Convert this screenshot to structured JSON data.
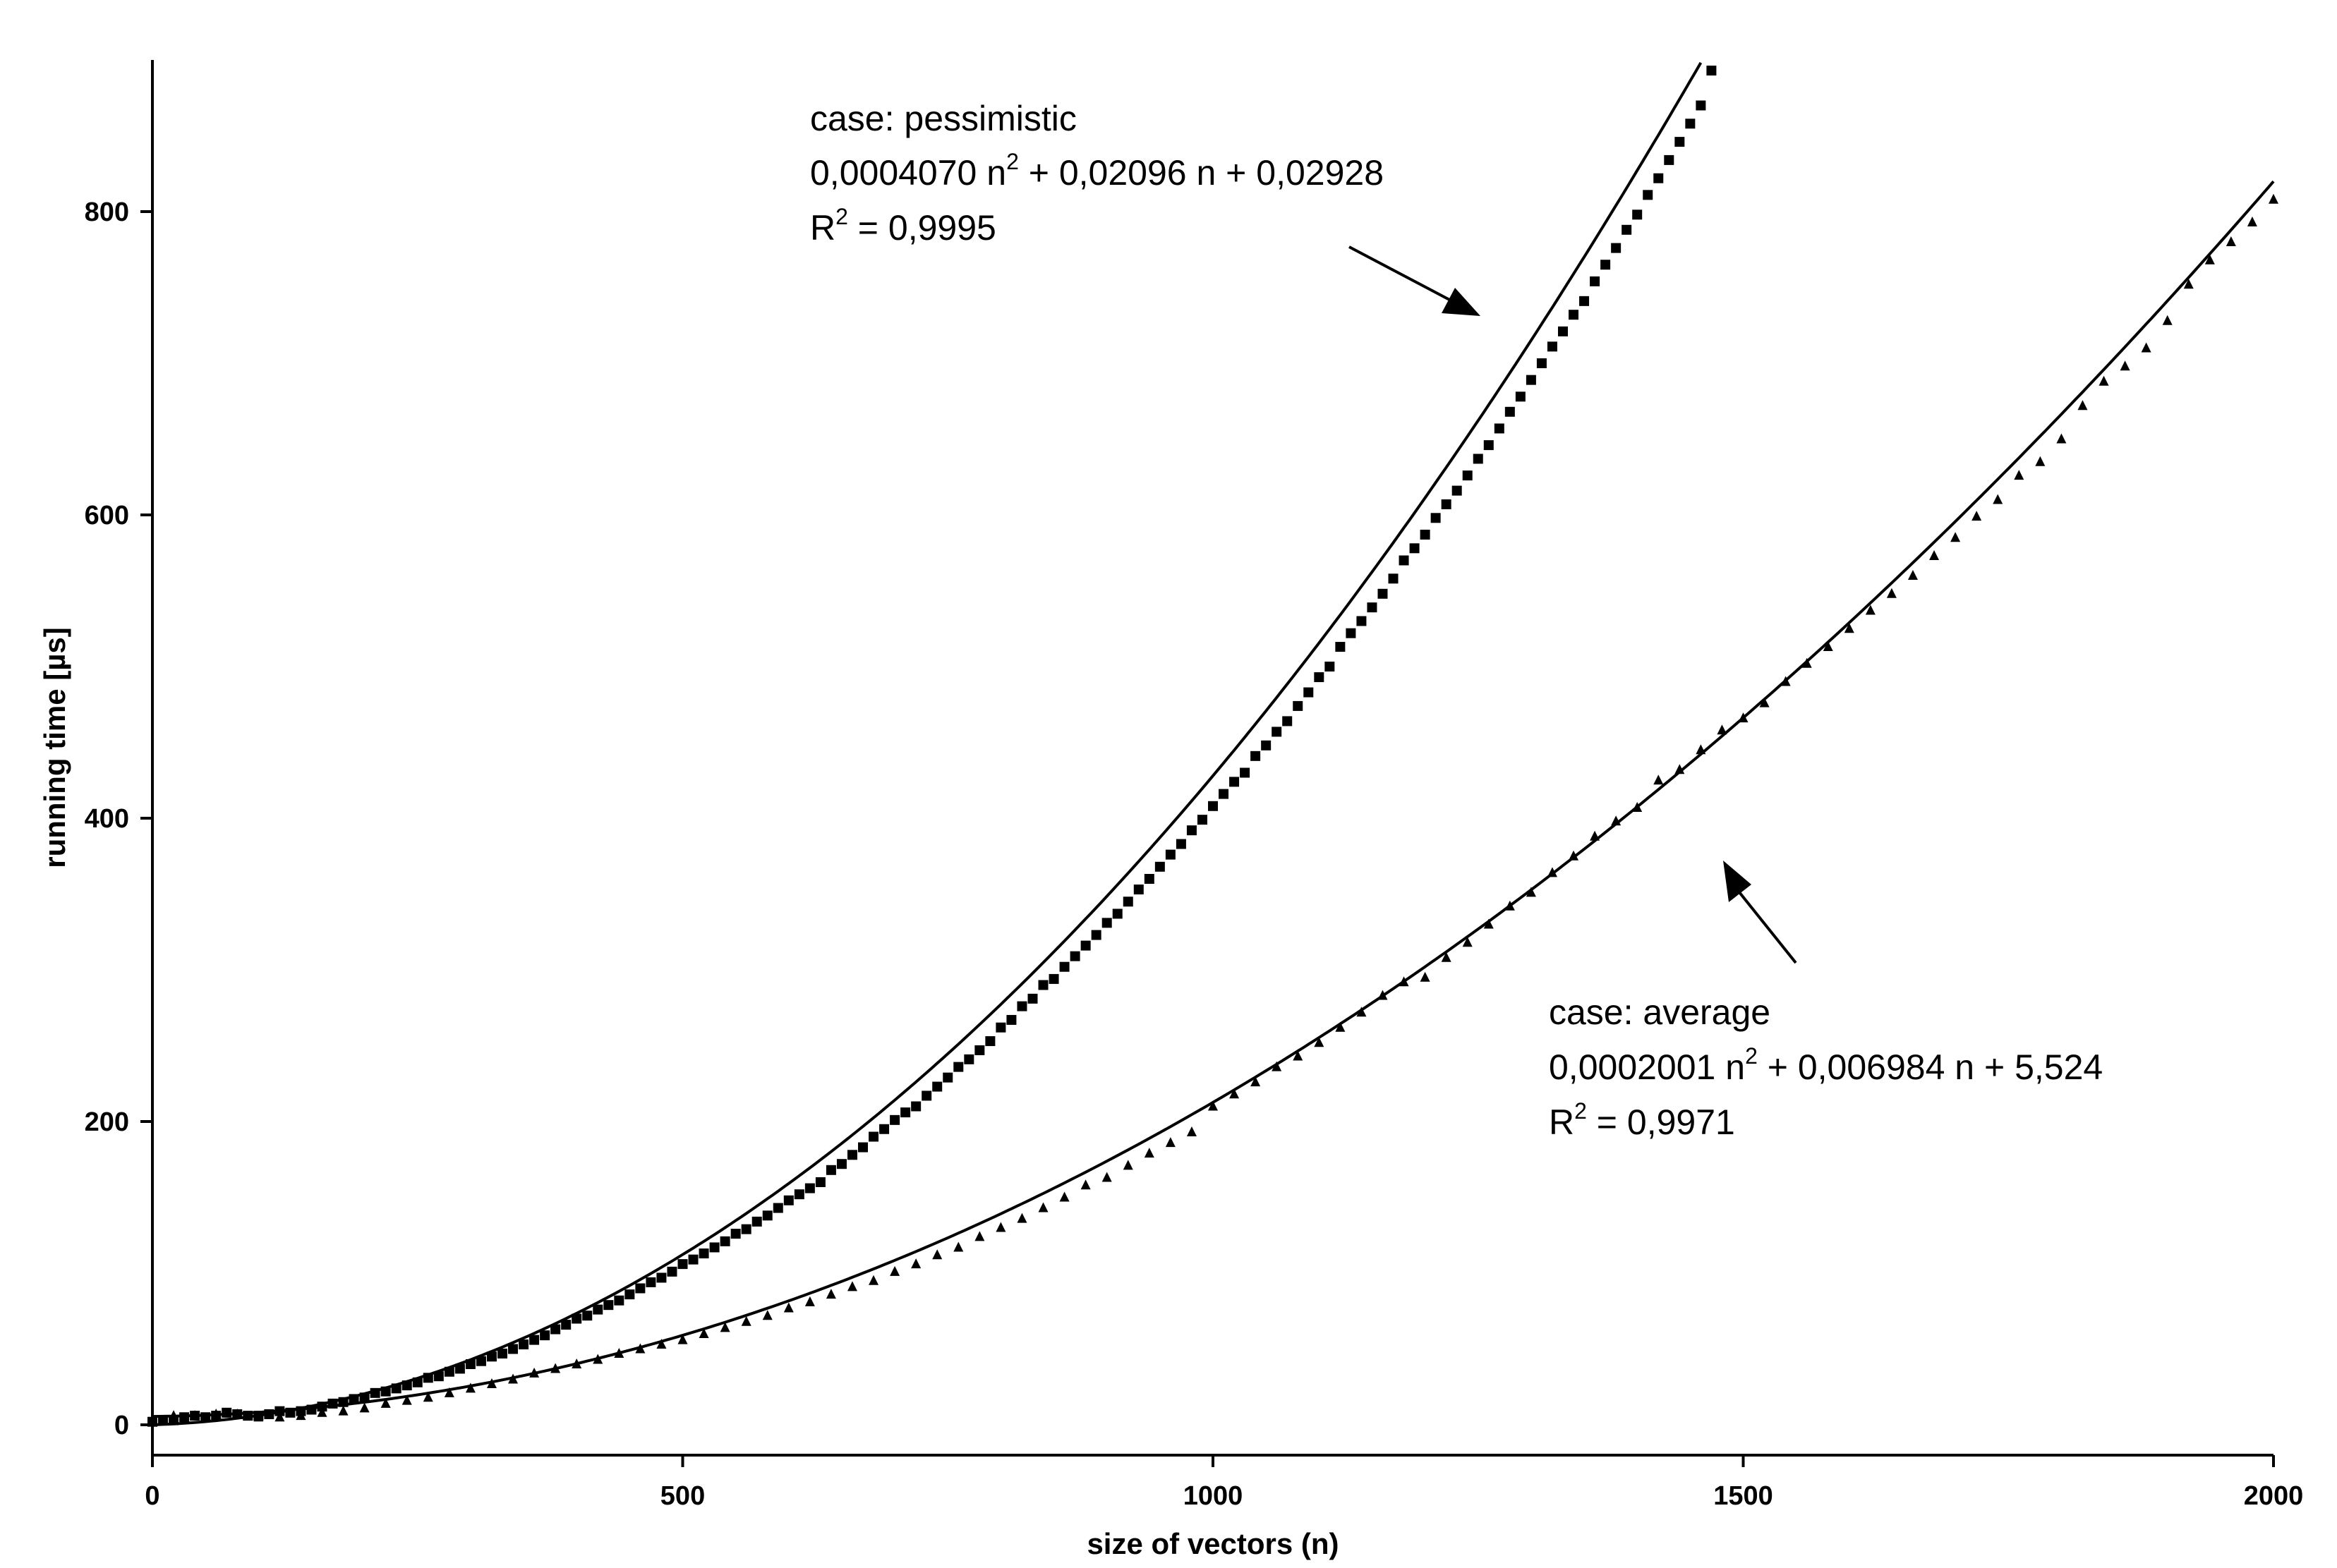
{
  "chart_data": {
    "type": "scatter",
    "xlabel": "size of vectors (n)",
    "ylabel": "running time [µs]",
    "xlim": [
      0,
      2000
    ],
    "ylim": [
      -20,
      900
    ],
    "x_ticks": [
      "0",
      "500",
      "1000",
      "1500",
      "2000"
    ],
    "y_ticks": [
      "0",
      "200",
      "400",
      "600",
      "800"
    ],
    "grid": false,
    "series": [
      {
        "case_label": "case: pessimistic",
        "equation_prefix": "0,0004070 n",
        "equation_sup": "2",
        "equation_suffix": " + 0,02096 n + 0,02928",
        "r2_prefix": "R",
        "r2_sup": "2",
        "r2_suffix": " = 0,9995",
        "marker": "square",
        "color": "#000000",
        "fit": {
          "a": 0.000407,
          "b": 0.02096,
          "c": 0.02928
        },
        "x": [
          0,
          10,
          20,
          30,
          40,
          50,
          60,
          70,
          80,
          90,
          100,
          110,
          120,
          130,
          140,
          150,
          160,
          170,
          180,
          190,
          200,
          210,
          220,
          230,
          240,
          250,
          260,
          270,
          280,
          290,
          300,
          310,
          320,
          330,
          340,
          350,
          360,
          370,
          380,
          390,
          400,
          410,
          420,
          430,
          440,
          450,
          460,
          470,
          480,
          490,
          500,
          510,
          520,
          530,
          540,
          550,
          560,
          570,
          580,
          590,
          600,
          610,
          620,
          630,
          640,
          650,
          660,
          670,
          680,
          690,
          700,
          710,
          720,
          730,
          740,
          750,
          760,
          770,
          780,
          790,
          800,
          810,
          820,
          830,
          840,
          850,
          860,
          870,
          880,
          890,
          900,
          910,
          920,
          930,
          940,
          950,
          960,
          970,
          980,
          990,
          1000,
          1010,
          1020,
          1030,
          1040,
          1050,
          1060,
          1070,
          1080,
          1090,
          1100,
          1110,
          1120,
          1130,
          1140,
          1150,
          1160,
          1170,
          1180,
          1190,
          1200,
          1210,
          1220,
          1230,
          1240,
          1250,
          1260,
          1270,
          1280,
          1290,
          1300,
          1310,
          1320,
          1330,
          1340,
          1350,
          1360,
          1370,
          1380,
          1390,
          1400,
          1410,
          1420,
          1430,
          1440,
          1450,
          1460,
          1470
        ],
        "y": [
          2,
          3,
          3,
          5,
          6,
          5,
          6,
          8,
          7,
          6,
          6,
          7,
          9,
          8,
          9,
          10,
          12,
          14,
          15,
          17,
          18,
          21,
          22,
          24,
          26,
          28,
          31,
          32,
          35,
          37,
          40,
          42,
          45,
          47,
          50,
          53,
          56,
          59,
          63,
          66,
          70,
          72,
          76,
          79,
          82,
          86,
          90,
          94,
          97,
          101,
          106,
          109,
          113,
          117,
          121,
          126,
          129,
          134,
          138,
          143,
          148,
          152,
          156,
          160,
          168,
          172,
          178,
          183,
          190,
          195,
          201,
          206,
          210,
          217,
          223,
          229,
          236,
          241,
          247,
          253,
          262,
          267,
          276,
          281,
          290,
          294,
          302,
          309,
          316,
          323,
          331,
          337,
          345,
          353,
          360,
          368,
          376,
          383,
          392,
          399,
          408,
          416,
          424,
          430,
          441,
          448,
          457,
          464,
          474,
          483,
          493,
          500,
          513,
          522,
          530,
          539,
          548,
          558,
          570,
          578,
          587,
          598,
          607,
          616,
          626,
          637,
          646,
          657,
          668,
          678,
          689,
          700,
          711,
          721,
          732,
          741,
          754,
          765,
          776,
          788,
          798,
          811,
          822,
          834,
          846,
          858,
          870,
          893
        ]
      },
      {
        "case_label": "case: average",
        "equation_prefix": "0,0002001 n",
        "equation_sup": "2",
        "equation_suffix": " + 0,006984 n + 5,524",
        "r2_prefix": "R",
        "r2_sup": "2",
        "r2_suffix": " = 0,9971",
        "marker": "triangle",
        "color": "#000000",
        "fit": {
          "a": 0.0002001,
          "b": 0.006984,
          "c": 5.524
        },
        "x": [
          0,
          20,
          40,
          60,
          80,
          100,
          120,
          140,
          160,
          180,
          200,
          220,
          240,
          260,
          280,
          300,
          320,
          340,
          360,
          380,
          400,
          420,
          440,
          460,
          480,
          500,
          520,
          540,
          560,
          580,
          600,
          620,
          640,
          660,
          680,
          700,
          720,
          740,
          760,
          780,
          800,
          820,
          840,
          860,
          880,
          900,
          920,
          940,
          960,
          980,
          1000,
          1020,
          1040,
          1060,
          1080,
          1100,
          1120,
          1140,
          1160,
          1180,
          1200,
          1220,
          1240,
          1260,
          1280,
          1300,
          1320,
          1340,
          1360,
          1380,
          1400,
          1420,
          1440,
          1460,
          1480,
          1500,
          1520,
          1540,
          1560,
          1580,
          1600,
          1620,
          1640,
          1660,
          1680,
          1700,
          1720,
          1740,
          1760,
          1780,
          1800,
          1820,
          1840,
          1860,
          1880,
          1900,
          1920,
          1940,
          1960,
          1980,
          2000
        ],
        "y": [
          3,
          6,
          6,
          7,
          7,
          5,
          5,
          6,
          8,
          9,
          11,
          14,
          16,
          18,
          21,
          24,
          27,
          30,
          34,
          37,
          40,
          43,
          47,
          50,
          53,
          56,
          60,
          64,
          68,
          72,
          77,
          81,
          86,
          91,
          95,
          101,
          106,
          112,
          117,
          124,
          130,
          136,
          143,
          150,
          158,
          163,
          171,
          179,
          186,
          193,
          210,
          218,
          226,
          236,
          243,
          252,
          262,
          272,
          283,
          292,
          295,
          308,
          318,
          330,
          342,
          351,
          364,
          375,
          388,
          398,
          407,
          425,
          432,
          445,
          458,
          466,
          476,
          490,
          502,
          513,
          525,
          537,
          548,
          560,
          573,
          585,
          599,
          610,
          626,
          635,
          650,
          672,
          688,
          698,
          710,
          728,
          752,
          768,
          780,
          793,
          808
        ]
      }
    ]
  }
}
